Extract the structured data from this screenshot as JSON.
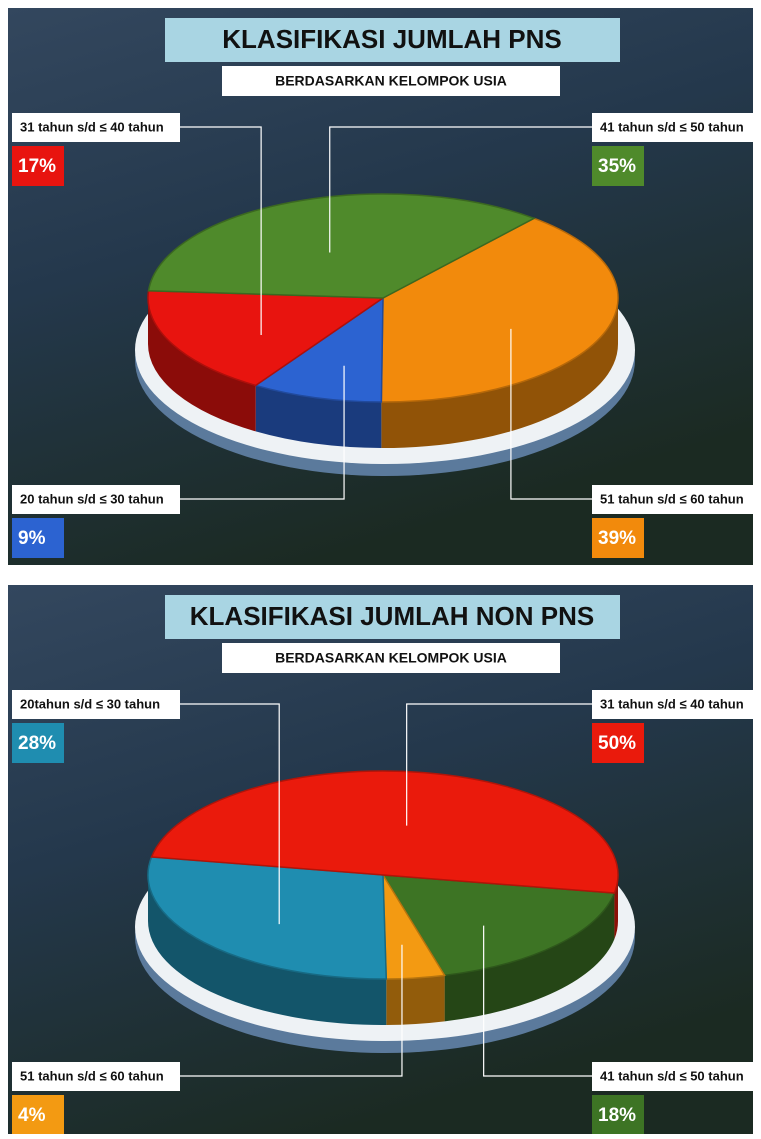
{
  "chart_data": [
    {
      "type": "pie",
      "title": "KLASIFIKASI JUMLAH PNS",
      "subtitle": "BERDASARKAN KELOMPOK USIA",
      "categories": [
        "51 tahun s/d ≤ 60 tahun",
        "20 tahun s/d ≤ 30 tahun",
        "31 tahun s/d ≤ 40 tahun",
        "41 tahun s/d ≤ 50 tahun"
      ],
      "values": [
        39,
        9,
        17,
        35
      ],
      "value_labels": [
        "39%",
        "9%",
        "17%",
        "35%"
      ],
      "colors": [
        "#f28a0c",
        "#2c63d1",
        "#e8140f",
        "#4f8a2b"
      ]
    },
    {
      "type": "pie",
      "title": "KLASIFIKASI JUMLAH NON PNS",
      "subtitle": "BERDASARKAN KELOMPOK USIA",
      "categories": [
        "41 tahun s/d ≤ 50 tahun",
        "51 tahun s/d ≤ 60 tahun",
        "20tahun s/d ≤ 30 tahun",
        "31 tahun s/d ≤ 40 tahun"
      ],
      "values": [
        18,
        4,
        28,
        50
      ],
      "value_labels": [
        "18%",
        "4%",
        "28%",
        "50%"
      ],
      "colors": [
        "#3d7424",
        "#f39a12",
        "#1f8db0",
        "#ea1a0c"
      ]
    }
  ]
}
